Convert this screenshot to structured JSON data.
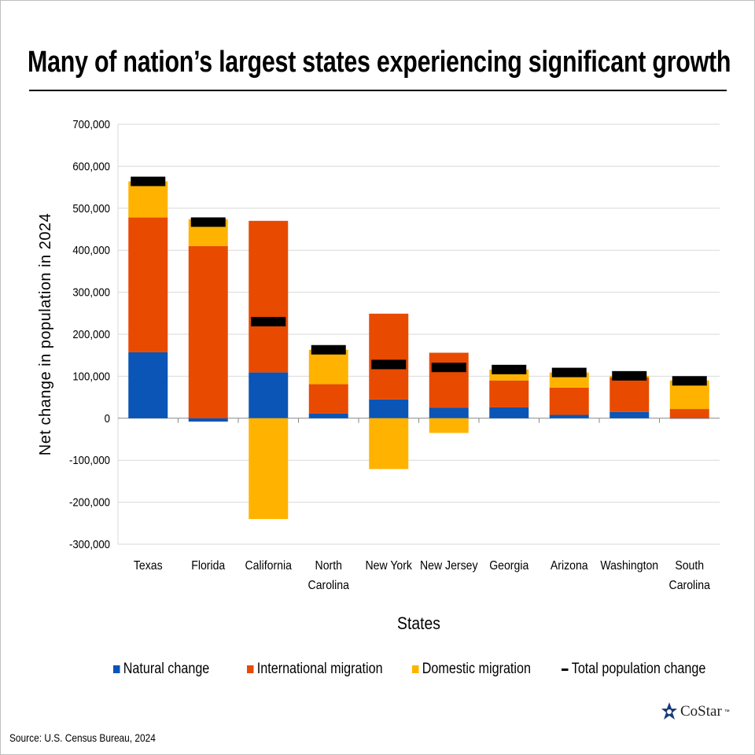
{
  "title": "Many of nation’s largest states experiencing significant growth",
  "source": "Source: U.S. Census Bureau, 2024",
  "logo": {
    "text": "CoStar",
    "tm": "™"
  },
  "colors": {
    "natural": "#0A55B5",
    "international": "#E84A00",
    "domestic": "#FFB300",
    "total": "#000000"
  },
  "chart_data": {
    "type": "bar",
    "stacked": true,
    "title": "Many of nation’s largest states experiencing significant growth",
    "xlabel": "States",
    "ylabel": "Net change in population in 2024",
    "ylim": [
      -300000,
      700000
    ],
    "yticks": [
      700000,
      600000,
      500000,
      400000,
      300000,
      200000,
      100000,
      0,
      -100000,
      -200000,
      -300000
    ],
    "ytick_labels": [
      "700,000",
      "600,000",
      "500,000",
      "400,000",
      "300,000",
      "200,000",
      "100,000",
      "0",
      "-100,000",
      "-200,000",
      "-300,000"
    ],
    "grid": true,
    "legend_position": "bottom",
    "categories": [
      "Texas",
      "Florida",
      "California",
      "North Carolina",
      "New York",
      "New Jersey",
      "Georgia",
      "Arizona",
      "Washington",
      "South Carolina"
    ],
    "category_lines": [
      [
        "Texas"
      ],
      [
        "Florida"
      ],
      [
        "California"
      ],
      [
        "North",
        "Carolina"
      ],
      [
        "New York"
      ],
      [
        "New Jersey"
      ],
      [
        "Georgia"
      ],
      [
        "Arizona"
      ],
      [
        "Washington"
      ],
      [
        "South",
        "Carolina"
      ]
    ],
    "series": [
      {
        "name": "Natural change",
        "values": [
          157000,
          -8000,
          109000,
          11000,
          45000,
          25000,
          26000,
          8000,
          15000,
          -1000
        ]
      },
      {
        "name": "International migration",
        "values": [
          321000,
          410000,
          361000,
          70000,
          204000,
          131000,
          64000,
          65000,
          82000,
          22000
        ]
      },
      {
        "name": "Domestic migration",
        "values": [
          86000,
          64000,
          -240000,
          82000,
          -121000,
          -35000,
          26000,
          36000,
          4000,
          68000
        ]
      },
      {
        "name": "Total population change",
        "type": "marker",
        "values": [
          564000,
          467000,
          230000,
          163000,
          128000,
          121000,
          116000,
          109000,
          101000,
          89000
        ]
      }
    ]
  }
}
